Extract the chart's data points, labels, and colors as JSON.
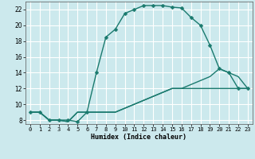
{
  "xlabel": "Humidex (Indice chaleur)",
  "bg_color": "#cce9ed",
  "grid_color": "#ffffff",
  "line_color": "#1a7a6e",
  "xlim": [
    -0.5,
    23.5
  ],
  "ylim": [
    7.5,
    23.0
  ],
  "xticks": [
    0,
    1,
    2,
    3,
    4,
    5,
    6,
    7,
    8,
    9,
    10,
    11,
    12,
    13,
    14,
    15,
    16,
    17,
    18,
    19,
    20,
    21,
    22,
    23
  ],
  "yticks": [
    8,
    10,
    12,
    14,
    16,
    18,
    20,
    22
  ],
  "line1_x": [
    0,
    1,
    2,
    3,
    4,
    5,
    6,
    7,
    8,
    9,
    10,
    11,
    12,
    13,
    14,
    15,
    16,
    17,
    18,
    19,
    20,
    21,
    22,
    23
  ],
  "line1_y": [
    9,
    9,
    8,
    8,
    8,
    7.8,
    9,
    14,
    18.5,
    19.5,
    21.5,
    22,
    22.5,
    22.5,
    22.5,
    22.3,
    22.2,
    21,
    20,
    17.5,
    14.5,
    14,
    12,
    12
  ],
  "line2_x": [
    0,
    1,
    2,
    3,
    4,
    5,
    6,
    7,
    8,
    9,
    10,
    11,
    12,
    13,
    14,
    15,
    16,
    17,
    18,
    19,
    20,
    21,
    22,
    23
  ],
  "line2_y": [
    9,
    9,
    8,
    8,
    7.8,
    9,
    9,
    9,
    9,
    9,
    9.5,
    10,
    10.5,
    11,
    11.5,
    12,
    12,
    12,
    12,
    12,
    12,
    12,
    12,
    12
  ],
  "line3_x": [
    0,
    1,
    2,
    3,
    4,
    5,
    6,
    7,
    8,
    9,
    10,
    11,
    12,
    13,
    14,
    15,
    16,
    17,
    18,
    19,
    20,
    21,
    22,
    23
  ],
  "line3_y": [
    9,
    9,
    8,
    8,
    7.8,
    9,
    9,
    9,
    9,
    9,
    9.5,
    10,
    10.5,
    11,
    11.5,
    12,
    12,
    12.5,
    13,
    13.5,
    14.5,
    14,
    13.5,
    12
  ],
  "xlabel_fontsize": 6.0,
  "tick_fontsize": 5.0,
  "linewidth": 1.0,
  "markersize": 2.5
}
